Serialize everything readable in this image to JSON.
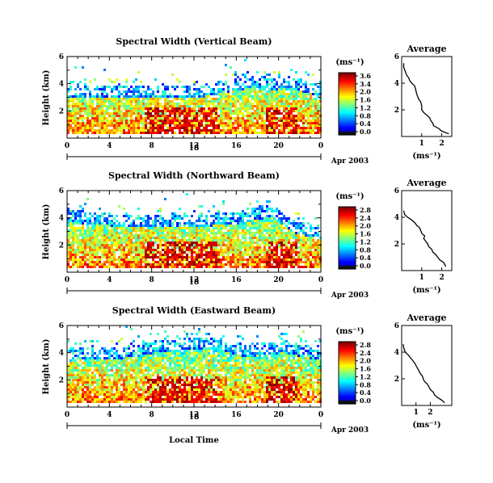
{
  "figure": {
    "xlabel": "Local Time",
    "date_label": "Apr 2003",
    "day_label": "18",
    "colorbar_unit": "(ms⁻¹)",
    "average_title": "Average",
    "average_xlabel": "(ms⁻¹)",
    "ylabel": "Height (km)"
  },
  "chart_data": [
    {
      "type": "heatmap",
      "title": "Spectral Width (Vertical Beam)",
      "ylabel": "Height (km)",
      "x_ticks": [
        "0",
        "4",
        "8",
        "12",
        "16",
        "20",
        "0"
      ],
      "xlim": [
        0,
        24
      ],
      "y_ticks": [
        "6",
        "4",
        "2"
      ],
      "ylim": [
        0,
        6
      ],
      "colorbar": {
        "ticks": [
          "3.6",
          "3.4",
          "2.0",
          "1.6",
          "1.2",
          "0.8",
          "0.4",
          "0.0"
        ],
        "range": [
          0,
          3.6
        ],
        "unit": "ms-1"
      },
      "average_profile": {
        "title": "Average",
        "xlabel": "(ms-1)",
        "x_ticks": [
          "1",
          "2"
        ],
        "xlim": [
          0,
          2.5
        ],
        "y_ticks": [
          "6",
          "4",
          "2"
        ],
        "ylim": [
          0,
          6
        ],
        "points": [
          [
            2.35,
            0.2
          ],
          [
            2.0,
            0.4
          ],
          [
            1.85,
            0.6
          ],
          [
            1.6,
            0.8
          ],
          [
            1.55,
            1.0
          ],
          [
            1.45,
            1.2
          ],
          [
            1.4,
            1.4
          ],
          [
            1.25,
            1.6
          ],
          [
            1.1,
            1.8
          ],
          [
            1.0,
            2.0
          ],
          [
            1.0,
            2.3
          ],
          [
            0.95,
            2.6
          ],
          [
            0.85,
            2.8
          ],
          [
            0.8,
            3.0
          ],
          [
            0.75,
            3.2
          ],
          [
            0.7,
            3.5
          ],
          [
            0.65,
            3.8
          ],
          [
            0.5,
            4.0
          ],
          [
            0.4,
            4.2
          ],
          [
            0.35,
            4.4
          ],
          [
            0.25,
            4.6
          ],
          [
            0.2,
            4.8
          ],
          [
            0.15,
            5.0
          ],
          [
            0.1,
            5.2
          ],
          [
            0.1,
            5.5
          ]
        ]
      }
    },
    {
      "type": "heatmap",
      "title": "Spectral Width (Northward Beam)",
      "ylabel": "Height (km)",
      "x_ticks": [
        "0",
        "4",
        "8",
        "12",
        "16",
        "20",
        "0"
      ],
      "xlim": [
        0,
        24
      ],
      "y_ticks": [
        "6",
        "4",
        "2"
      ],
      "ylim": [
        0,
        6
      ],
      "colorbar": {
        "ticks": [
          "2.8",
          "2.4",
          "2.0",
          "1.6",
          "1.2",
          "0.8",
          "0.4",
          "0.0"
        ],
        "range": [
          0,
          2.8
        ],
        "unit": "ms-1"
      },
      "average_profile": {
        "title": "Average",
        "xlabel": "(ms-1)",
        "x_ticks": [
          "1",
          "2"
        ],
        "xlim": [
          0,
          2.5
        ],
        "y_ticks": [
          "6",
          "4",
          "2"
        ],
        "ylim": [
          0,
          6
        ],
        "points": [
          [
            2.2,
            0.3
          ],
          [
            2.1,
            0.6
          ],
          [
            1.9,
            0.8
          ],
          [
            1.8,
            1.0
          ],
          [
            1.7,
            1.2
          ],
          [
            1.55,
            1.4
          ],
          [
            1.5,
            1.6
          ],
          [
            1.35,
            1.8
          ],
          [
            1.3,
            2.0
          ],
          [
            1.2,
            2.2
          ],
          [
            1.1,
            2.4
          ],
          [
            1.15,
            2.6
          ],
          [
            1.0,
            2.8
          ],
          [
            0.95,
            3.0
          ],
          [
            0.9,
            3.2
          ],
          [
            0.75,
            3.4
          ],
          [
            0.65,
            3.6
          ],
          [
            0.5,
            3.8
          ],
          [
            0.3,
            4.0
          ],
          [
            0.15,
            4.2
          ],
          [
            0.1,
            4.5
          ]
        ]
      }
    },
    {
      "type": "heatmap",
      "title": "Spectral Width (Eastward Beam)",
      "ylabel": "Height (km)",
      "x_ticks": [
        "0",
        "4",
        "8",
        "12",
        "16",
        "20",
        "0"
      ],
      "xlim": [
        0,
        24
      ],
      "y_ticks": [
        "6",
        "4",
        "2"
      ],
      "ylim": [
        0,
        6
      ],
      "colorbar": {
        "ticks": [
          "2.8",
          "2.4",
          "2.0",
          "1.6",
          "1.2",
          "0.8",
          "0.4",
          "0.0"
        ],
        "range": [
          0,
          2.8
        ],
        "unit": "ms-1"
      },
      "average_profile": {
        "title": "Average",
        "xlabel": "(ms-1)",
        "x_ticks": [
          "1",
          "2"
        ],
        "xlim": [
          0,
          3.5
        ],
        "y_ticks": [
          "6",
          "4",
          "2"
        ],
        "ylim": [
          0,
          6
        ],
        "points": [
          [
            3.0,
            0.2
          ],
          [
            2.8,
            0.4
          ],
          [
            2.5,
            0.6
          ],
          [
            2.3,
            0.8
          ],
          [
            2.2,
            1.0
          ],
          [
            2.0,
            1.2
          ],
          [
            1.9,
            1.4
          ],
          [
            1.8,
            1.6
          ],
          [
            1.6,
            1.8
          ],
          [
            1.5,
            2.0
          ],
          [
            1.45,
            2.2
          ],
          [
            1.3,
            2.4
          ],
          [
            1.2,
            2.6
          ],
          [
            1.1,
            2.8
          ],
          [
            1.0,
            3.0
          ],
          [
            0.9,
            3.2
          ],
          [
            0.75,
            3.4
          ],
          [
            0.6,
            3.6
          ],
          [
            0.45,
            3.8
          ],
          [
            0.25,
            4.0
          ],
          [
            0.15,
            4.3
          ],
          [
            0.1,
            4.6
          ]
        ]
      }
    }
  ]
}
